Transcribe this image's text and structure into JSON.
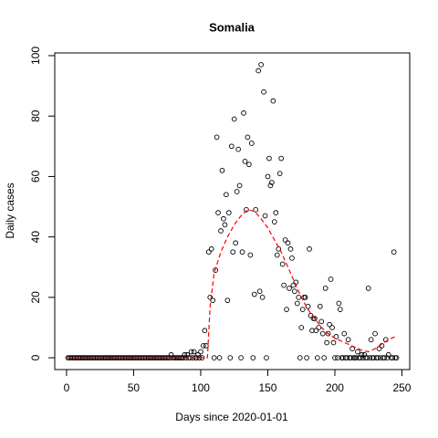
{
  "chart_data": {
    "type": "scatter",
    "title": "Somalia",
    "xlabel": "Days since 2020-01-01",
    "ylabel": "Daily cases",
    "xlim": [
      -8.8,
      255.8
    ],
    "ylim": [
      -3.9,
      100.9
    ],
    "xticks": [
      0,
      50,
      100,
      150,
      200,
      250
    ],
    "yticks": [
      0,
      20,
      40,
      60,
      80,
      100
    ],
    "series": [
      {
        "color": "#000000",
        "marker": "open-circle",
        "x": [
          1,
          2,
          3,
          4,
          5,
          6,
          7,
          8,
          9,
          10,
          11,
          12,
          13,
          14,
          15,
          16,
          17,
          18,
          19,
          20,
          21,
          22,
          23,
          24,
          25,
          26,
          27,
          28,
          29,
          30,
          31,
          32,
          33,
          34,
          35,
          36,
          37,
          38,
          39,
          40,
          41,
          42,
          43,
          44,
          45,
          46,
          47,
          48,
          49,
          50,
          51,
          52,
          53,
          54,
          55,
          56,
          57,
          58,
          59,
          60,
          61,
          62,
          63,
          64,
          65,
          66,
          67,
          68,
          69,
          70,
          71,
          72,
          73,
          74,
          75,
          76,
          77,
          79,
          80,
          81,
          82,
          83,
          84,
          85,
          86,
          87,
          89,
          91,
          92,
          94,
          96,
          97,
          99,
          101,
          110,
          114,
          122,
          130,
          139,
          149,
          174,
          179,
          187,
          192,
          200,
          202,
          205,
          206,
          208,
          209,
          211,
          212,
          214,
          215,
          216,
          218,
          219,
          221,
          223,
          224,
          226,
          228,
          229,
          231,
          232,
          234,
          236,
          237,
          239,
          242,
          243,
          245,
          246,
          78,
          88,
          90,
          93,
          95,
          98,
          100,
          102,
          103,
          104,
          106,
          107,
          108,
          109,
          111,
          112,
          113,
          115,
          116,
          117,
          118,
          119,
          120,
          121,
          123,
          124,
          125,
          126,
          127,
          128,
          129,
          131,
          132,
          133,
          134,
          135,
          136,
          137,
          138,
          140,
          141,
          143,
          144,
          145,
          146,
          147,
          148,
          150,
          151,
          152,
          153,
          154,
          155,
          156,
          157,
          158,
          159,
          160,
          161,
          162,
          163,
          164,
          165,
          166,
          167,
          168,
          169,
          170,
          171,
          172,
          173,
          175,
          176,
          177,
          178,
          180,
          181,
          182,
          183,
          184,
          185,
          186,
          188,
          189,
          190,
          191,
          193,
          194,
          195,
          196,
          197,
          198,
          199,
          201,
          203,
          204,
          207,
          210,
          213,
          217,
          220,
          222,
          225,
          227,
          230,
          233,
          235,
          238,
          240,
          244
        ],
        "values": [
          0,
          0,
          0,
          0,
          0,
          0,
          0,
          0,
          0,
          0,
          0,
          0,
          0,
          0,
          0,
          0,
          0,
          0,
          0,
          0,
          0,
          0,
          0,
          0,
          0,
          0,
          0,
          0,
          0,
          0,
          0,
          0,
          0,
          0,
          0,
          0,
          0,
          0,
          0,
          0,
          0,
          0,
          0,
          0,
          0,
          0,
          0,
          0,
          0,
          0,
          0,
          0,
          0,
          0,
          0,
          0,
          0,
          0,
          0,
          0,
          0,
          0,
          0,
          0,
          0,
          0,
          0,
          0,
          0,
          0,
          0,
          0,
          0,
          0,
          0,
          0,
          0,
          0,
          0,
          0,
          0,
          0,
          0,
          0,
          0,
          0,
          0,
          0,
          0,
          0,
          0,
          0,
          0,
          0,
          0,
          0,
          0,
          0,
          0,
          0,
          0,
          0,
          0,
          0,
          0,
          0,
          0,
          0,
          0,
          0,
          0,
          0,
          0,
          0,
          0,
          0,
          0,
          0,
          0,
          0,
          0,
          0,
          0,
          0,
          0,
          0,
          0,
          0,
          0,
          0,
          0,
          0,
          0,
          1,
          1,
          1,
          2,
          2,
          1,
          2,
          4,
          9,
          4,
          35,
          20,
          36,
          19,
          29,
          73,
          48,
          42,
          62,
          46,
          44,
          54,
          19,
          48,
          70,
          35,
          79,
          38,
          55,
          69,
          57,
          35,
          81,
          65,
          49,
          73,
          64,
          34,
          71,
          21,
          49,
          95,
          22,
          97,
          20,
          88,
          47,
          60,
          66,
          57,
          58,
          85,
          45,
          48,
          34,
          36,
          61,
          66,
          31,
          24,
          39,
          16,
          38,
          23,
          36,
          33,
          24,
          22,
          25,
          18,
          20,
          10,
          16,
          20,
          20,
          17,
          36,
          14,
          9,
          13,
          13,
          9,
          10,
          17,
          12,
          8,
          23,
          5,
          8,
          11,
          26,
          10,
          5,
          7,
          18,
          16,
          8,
          6,
          3,
          2,
          1,
          1,
          23,
          6,
          8,
          3,
          4,
          6,
          1,
          35
        ]
      },
      {
        "color": "#ff0000",
        "marker": "dashed-line",
        "x": [
          1,
          100,
          105,
          107,
          110,
          115,
          120,
          125,
          130,
          135,
          140,
          145,
          150,
          155,
          160,
          165,
          170,
          175,
          180,
          185,
          190,
          195,
          200,
          205,
          210,
          215,
          220,
          225,
          230,
          235,
          240,
          245
        ],
        "values": [
          0,
          0,
          0,
          17,
          28,
          35,
          40,
          44,
          47,
          49,
          48.5,
          46,
          43,
          39,
          35,
          30,
          25,
          20,
          16,
          13,
          10,
          8,
          6.5,
          5.5,
          4.5,
          3.5,
          2.5,
          2,
          3,
          4.5,
          6,
          7
        ]
      }
    ]
  }
}
